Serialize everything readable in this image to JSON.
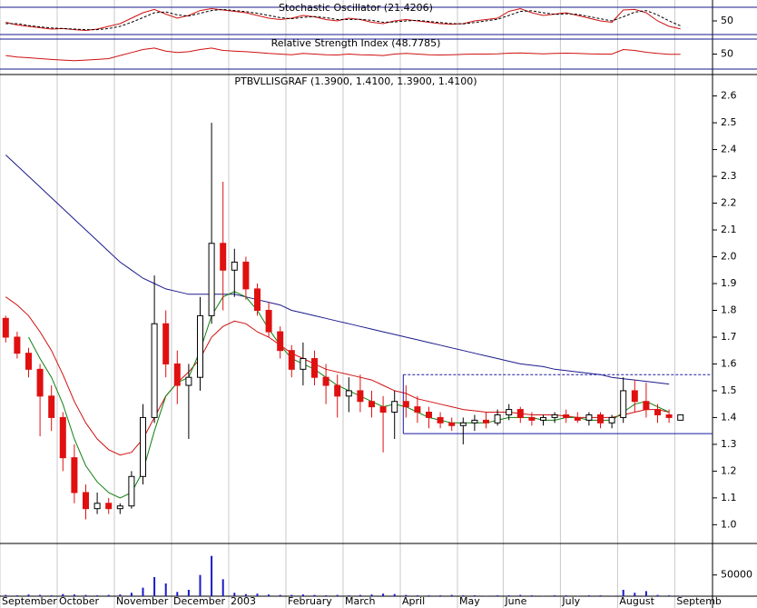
{
  "chart_data": [
    {
      "type": "line",
      "title": "Stochastic Oscillator (21.4206)",
      "ylim": [
        0,
        100
      ],
      "yticks": [
        50
      ],
      "series": [
        {
          "color": "#d01010",
          "values": [
            45,
            35,
            30,
            25,
            20,
            22,
            18,
            15,
            20,
            30,
            40,
            60,
            80,
            92,
            75,
            60,
            70,
            88,
            95,
            90,
            85,
            80,
            70,
            60,
            55,
            60,
            70,
            65,
            55,
            50,
            60,
            55,
            45,
            40,
            50,
            55,
            50,
            45,
            40,
            38,
            40,
            50,
            55,
            60,
            85,
            95,
            80,
            70,
            75,
            80,
            70,
            60,
            50,
            45,
            90,
            92,
            80,
            50,
            30,
            21
          ]
        },
        {
          "color": "#000000",
          "dashed": true,
          "values": [
            40,
            40,
            33,
            28,
            24,
            22,
            20,
            18,
            18,
            22,
            30,
            45,
            62,
            80,
            83,
            72,
            68,
            78,
            88,
            92,
            88,
            84,
            78,
            70,
            62,
            58,
            63,
            66,
            62,
            55,
            55,
            56,
            52,
            45,
            46,
            50,
            52,
            48,
            44,
            40,
            39,
            44,
            50,
            56,
            70,
            85,
            87,
            80,
            74,
            76,
            74,
            66,
            58,
            50,
            65,
            82,
            88,
            72,
            50,
            32
          ]
        }
      ]
    },
    {
      "type": "line",
      "title": "Relative Strength Index (48.7785)",
      "ylim": [
        0,
        100
      ],
      "yticks": [
        50
      ],
      "series": [
        {
          "color": "#d01010",
          "values": [
            45,
            40,
            38,
            35,
            32,
            30,
            28,
            30,
            32,
            35,
            45,
            55,
            65,
            70,
            60,
            55,
            58,
            65,
            70,
            62,
            60,
            58,
            55,
            52,
            50,
            48,
            52,
            50,
            48,
            47,
            50,
            48,
            47,
            45,
            50,
            52,
            50,
            48,
            47,
            48,
            49,
            50,
            50,
            51,
            53,
            54,
            52,
            51,
            52,
            53,
            52,
            51,
            50,
            50,
            65,
            62,
            56,
            52,
            49,
            49
          ]
        }
      ]
    },
    {
      "type": "candlestick",
      "title": "PTBVLLISGRAF (1.3900, 1.4100, 1.3900, 1.4100)",
      "categories": [
        "September",
        null,
        null,
        null,
        null,
        "October",
        null,
        null,
        null,
        null,
        "November",
        null,
        null,
        null,
        null,
        "December",
        null,
        null,
        null,
        null,
        "2003",
        null,
        null,
        null,
        null,
        "February",
        null,
        null,
        null,
        null,
        "March",
        null,
        null,
        null,
        null,
        "April",
        null,
        null,
        null,
        null,
        "May",
        null,
        null,
        null,
        "June",
        null,
        null,
        null,
        null,
        "July",
        null,
        null,
        null,
        null,
        "August",
        null,
        null,
        null,
        null,
        "Septemb"
      ],
      "open": [
        1.77,
        1.7,
        1.64,
        1.58,
        1.48,
        1.4,
        1.25,
        1.12,
        1.06,
        1.08,
        1.06,
        1.07,
        1.18,
        1.4,
        1.75,
        1.6,
        1.52,
        1.55,
        1.78,
        2.05,
        1.95,
        1.98,
        1.88,
        1.8,
        1.72,
        1.65,
        1.58,
        1.62,
        1.55,
        1.52,
        1.48,
        1.5,
        1.46,
        1.44,
        1.42,
        1.46,
        1.44,
        1.42,
        1.4,
        1.38,
        1.37,
        1.38,
        1.39,
        1.38,
        1.41,
        1.43,
        1.4,
        1.39,
        1.4,
        1.41,
        1.4,
        1.39,
        1.41,
        1.38,
        1.4,
        1.5,
        1.46,
        1.43,
        1.41,
        1.39
      ],
      "high": [
        1.78,
        1.72,
        1.66,
        1.6,
        1.52,
        1.42,
        1.3,
        1.15,
        1.12,
        1.1,
        1.08,
        1.2,
        1.45,
        1.93,
        1.8,
        1.65,
        1.6,
        1.85,
        2.5,
        2.28,
        2.03,
        2.0,
        1.9,
        1.83,
        1.74,
        1.67,
        1.68,
        1.65,
        1.6,
        1.56,
        1.55,
        1.56,
        1.5,
        1.48,
        1.5,
        1.52,
        1.48,
        1.44,
        1.42,
        1.4,
        1.4,
        1.41,
        1.42,
        1.43,
        1.45,
        1.44,
        1.42,
        1.41,
        1.42,
        1.43,
        1.42,
        1.42,
        1.42,
        1.41,
        1.55,
        1.54,
        1.53,
        1.45,
        1.43,
        1.41
      ],
      "low": [
        1.68,
        1.62,
        1.55,
        1.33,
        1.35,
        1.2,
        1.08,
        1.02,
        1.04,
        1.04,
        1.04,
        1.06,
        1.15,
        1.38,
        1.55,
        1.45,
        1.32,
        1.5,
        1.75,
        1.8,
        1.85,
        1.84,
        1.78,
        1.7,
        1.62,
        1.55,
        1.52,
        1.52,
        1.45,
        1.4,
        1.42,
        1.42,
        1.4,
        1.27,
        1.32,
        1.4,
        1.38,
        1.36,
        1.36,
        1.35,
        1.3,
        1.35,
        1.36,
        1.37,
        1.39,
        1.38,
        1.37,
        1.37,
        1.38,
        1.38,
        1.38,
        1.37,
        1.36,
        1.36,
        1.38,
        1.42,
        1.4,
        1.38,
        1.38,
        1.39
      ],
      "close": [
        1.7,
        1.64,
        1.58,
        1.48,
        1.4,
        1.25,
        1.12,
        1.06,
        1.08,
        1.06,
        1.07,
        1.18,
        1.4,
        1.75,
        1.6,
        1.52,
        1.55,
        1.78,
        2.05,
        1.95,
        1.98,
        1.88,
        1.8,
        1.72,
        1.65,
        1.58,
        1.62,
        1.55,
        1.52,
        1.48,
        1.5,
        1.46,
        1.44,
        1.42,
        1.46,
        1.44,
        1.42,
        1.4,
        1.38,
        1.37,
        1.38,
        1.39,
        1.38,
        1.41,
        1.43,
        1.4,
        1.39,
        1.4,
        1.41,
        1.4,
        1.39,
        1.41,
        1.38,
        1.4,
        1.5,
        1.46,
        1.43,
        1.41,
        1.4,
        1.41
      ],
      "up_color": "#000000",
      "down_color": "#e01010",
      "series": [
        {
          "color": "#1a1a8c",
          "values": [
            2.38,
            2.34,
            2.3,
            2.26,
            2.22,
            2.18,
            2.14,
            2.1,
            2.06,
            2.02,
            1.98,
            1.95,
            1.92,
            1.9,
            1.88,
            1.87,
            1.86,
            1.86,
            1.86,
            1.86,
            1.86,
            1.85,
            1.84,
            1.83,
            1.82,
            1.8,
            1.79,
            1.78,
            1.77,
            1.76,
            1.75,
            1.74,
            1.73,
            1.72,
            1.71,
            1.7,
            1.69,
            1.68,
            1.67,
            1.66,
            1.65,
            1.64,
            1.63,
            1.62,
            1.61,
            1.6,
            1.595,
            1.59,
            1.58,
            1.575,
            1.57,
            1.565,
            1.56,
            1.55,
            1.545,
            1.54,
            1.535,
            1.53,
            1.525,
            null
          ]
        },
        {
          "color": "#d01010",
          "values": [
            1.85,
            1.82,
            1.78,
            1.72,
            1.65,
            1.56,
            1.46,
            1.38,
            1.32,
            1.28,
            1.26,
            1.27,
            1.32,
            1.4,
            1.48,
            1.53,
            1.57,
            1.62,
            1.7,
            1.74,
            1.76,
            1.75,
            1.72,
            1.7,
            1.67,
            1.64,
            1.62,
            1.6,
            1.58,
            1.57,
            1.56,
            1.55,
            1.54,
            1.52,
            1.5,
            1.49,
            1.47,
            1.46,
            1.45,
            1.44,
            1.43,
            1.425,
            1.42,
            1.42,
            1.42,
            1.415,
            1.41,
            1.41,
            1.41,
            1.405,
            1.4,
            1.4,
            1.4,
            1.4,
            1.41,
            1.42,
            1.43,
            1.43,
            1.42,
            null
          ]
        },
        {
          "color": "#108010",
          "values": [
            null,
            null,
            1.7,
            1.62,
            1.55,
            1.45,
            1.32,
            1.22,
            1.16,
            1.12,
            1.1,
            1.12,
            1.2,
            1.35,
            1.48,
            1.53,
            1.55,
            1.65,
            1.78,
            1.85,
            1.87,
            1.85,
            1.8,
            1.73,
            1.67,
            1.62,
            1.6,
            1.58,
            1.55,
            1.52,
            1.5,
            1.48,
            1.46,
            1.44,
            1.45,
            1.44,
            1.42,
            1.4,
            1.39,
            1.38,
            1.38,
            1.38,
            1.38,
            1.39,
            1.4,
            1.4,
            1.4,
            1.39,
            1.39,
            1.4,
            1.4,
            1.39,
            1.39,
            1.39,
            1.42,
            1.45,
            1.46,
            1.44,
            1.42,
            null
          ]
        }
      ],
      "levels": [
        {
          "value": 1.56,
          "dashed": true,
          "color": "#1a1aa0"
        },
        {
          "value": 1.34,
          "dashed": false,
          "color": "#1a1aa0"
        }
      ],
      "ylim": [
        0.93,
        2.68
      ],
      "yticks": [
        {
          "value": 1.0,
          "label": "1.0"
        },
        1.1,
        1.2,
        1.3,
        1.4,
        1.5,
        1.6,
        1.7,
        1.8,
        1.9,
        {
          "value": 2.0,
          "label": "2.0"
        },
        2.1,
        2.2,
        2.3,
        2.4,
        2.5,
        2.6
      ]
    },
    {
      "type": "bar",
      "color": "#1a1ac8",
      "ylim": [
        0,
        120000
      ],
      "yticks": [
        50000
      ],
      "values": [
        3000,
        2000,
        4000,
        3000,
        2000,
        5000,
        4000,
        3000,
        2000,
        3000,
        4000,
        8000,
        20000,
        45000,
        30000,
        10000,
        15000,
        50000,
        95000,
        40000,
        8000,
        5000,
        6000,
        4000,
        3000,
        3000,
        4000,
        3000,
        2000,
        3000,
        2000,
        3000,
        4000,
        6000,
        5000,
        3000,
        2000,
        2000,
        2000,
        3000,
        2000,
        2000,
        1000,
        2000,
        2000,
        3000,
        2000,
        1000,
        2000,
        2000,
        1000,
        2000,
        2000,
        1000,
        15000,
        8000,
        12000,
        3000,
        2000,
        1000
      ]
    }
  ]
}
